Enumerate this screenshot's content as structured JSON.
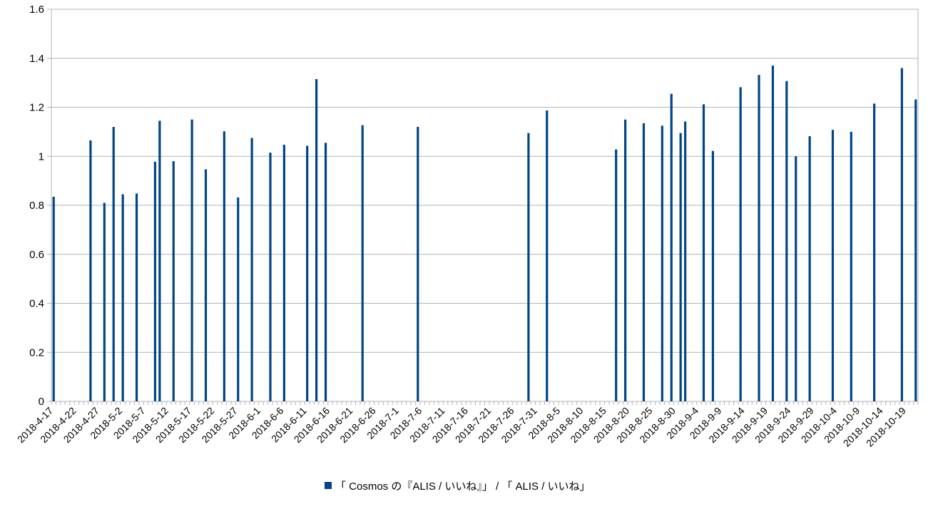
{
  "chart_data": {
    "type": "bar",
    "color": "#004586",
    "grid": true,
    "legend_position": "bottom",
    "ylim": [
      0,
      1.6
    ],
    "y_ticks": [
      "0",
      "0.2",
      "0.4",
      "0.6",
      "0.8",
      "1",
      "1.2",
      "1.4",
      "1.6"
    ],
    "x_start": "2018-04-17",
    "x_end": "2018-10-22",
    "x_tick_labels": [
      "2018-4-17",
      "2018-4-22",
      "2018-4-27",
      "2018-5-2",
      "2018-5-7",
      "2018-5-12",
      "2018-5-17",
      "2018-5-22",
      "2018-5-27",
      "2018-6-1",
      "2018-6-6",
      "2018-6-11",
      "2018-6-16",
      "2018-6-21",
      "2018-6-26",
      "2018-7-1",
      "2018-7-6",
      "2018-7-11",
      "2018-7-16",
      "2018-7-21",
      "2018-7-26",
      "2018-7-31",
      "2018-8-5",
      "2018-8-10",
      "2018-8-15",
      "2018-8-20",
      "2018-8-25",
      "2018-8-30",
      "2018-9-4",
      "2018-9-9",
      "2018-9-14",
      "2018-9-19",
      "2018-9-24",
      "2018-9-29",
      "2018-10-4",
      "2018-10-9",
      "2018-10-14",
      "2018-10-19"
    ],
    "x_tick_dates": [
      "2018-04-17",
      "2018-04-22",
      "2018-04-27",
      "2018-05-02",
      "2018-05-07",
      "2018-05-12",
      "2018-05-17",
      "2018-05-22",
      "2018-05-27",
      "2018-06-01",
      "2018-06-06",
      "2018-06-11",
      "2018-06-16",
      "2018-06-21",
      "2018-06-26",
      "2018-07-01",
      "2018-07-06",
      "2018-07-11",
      "2018-07-16",
      "2018-07-21",
      "2018-07-26",
      "2018-07-31",
      "2018-08-05",
      "2018-08-10",
      "2018-08-15",
      "2018-08-20",
      "2018-08-25",
      "2018-08-30",
      "2018-09-04",
      "2018-09-09",
      "2018-09-14",
      "2018-09-19",
      "2018-09-24",
      "2018-09-29",
      "2018-10-04",
      "2018-10-09",
      "2018-10-14",
      "2018-10-19"
    ],
    "series": [
      {
        "name": "「 Cosmos の『ALIS / いいね』」 / 「 ALIS / いいね」",
        "points": [
          {
            "x": "2018-04-17",
            "y": 0.835
          },
          {
            "x": "2018-04-25",
            "y": 1.065
          },
          {
            "x": "2018-04-28",
            "y": 0.81
          },
          {
            "x": "2018-04-30",
            "y": 1.12
          },
          {
            "x": "2018-05-02",
            "y": 0.845
          },
          {
            "x": "2018-05-05",
            "y": 0.848
          },
          {
            "x": "2018-05-09",
            "y": 0.978
          },
          {
            "x": "2018-05-10",
            "y": 1.145
          },
          {
            "x": "2018-05-13",
            "y": 0.98
          },
          {
            "x": "2018-05-17",
            "y": 1.15
          },
          {
            "x": "2018-05-20",
            "y": 0.947
          },
          {
            "x": "2018-05-24",
            "y": 1.102
          },
          {
            "x": "2018-05-27",
            "y": 0.832
          },
          {
            "x": "2018-05-30",
            "y": 1.075
          },
          {
            "x": "2018-06-03",
            "y": 1.015
          },
          {
            "x": "2018-06-06",
            "y": 1.047
          },
          {
            "x": "2018-06-11",
            "y": 1.043
          },
          {
            "x": "2018-06-13",
            "y": 1.315
          },
          {
            "x": "2018-06-15",
            "y": 1.055
          },
          {
            "x": "2018-06-23",
            "y": 1.127
          },
          {
            "x": "2018-07-05",
            "y": 1.12
          },
          {
            "x": "2018-07-29",
            "y": 1.095
          },
          {
            "x": "2018-08-02",
            "y": 1.187
          },
          {
            "x": "2018-08-17",
            "y": 1.028
          },
          {
            "x": "2018-08-19",
            "y": 1.15
          },
          {
            "x": "2018-08-23",
            "y": 1.135
          },
          {
            "x": "2018-08-27",
            "y": 1.125
          },
          {
            "x": "2018-08-29",
            "y": 1.255
          },
          {
            "x": "2018-08-31",
            "y": 1.095
          },
          {
            "x": "2018-09-01",
            "y": 1.142
          },
          {
            "x": "2018-09-05",
            "y": 1.212
          },
          {
            "x": "2018-09-07",
            "y": 1.022
          },
          {
            "x": "2018-09-13",
            "y": 1.282
          },
          {
            "x": "2018-09-17",
            "y": 1.332
          },
          {
            "x": "2018-09-20",
            "y": 1.37
          },
          {
            "x": "2018-09-23",
            "y": 1.307
          },
          {
            "x": "2018-09-25",
            "y": 1.0
          },
          {
            "x": "2018-09-28",
            "y": 1.082
          },
          {
            "x": "2018-10-03",
            "y": 1.108
          },
          {
            "x": "2018-10-07",
            "y": 1.1
          },
          {
            "x": "2018-10-12",
            "y": 1.215
          },
          {
            "x": "2018-10-18",
            "y": 1.36
          },
          {
            "x": "2018-10-21",
            "y": 1.232
          }
        ]
      }
    ]
  }
}
